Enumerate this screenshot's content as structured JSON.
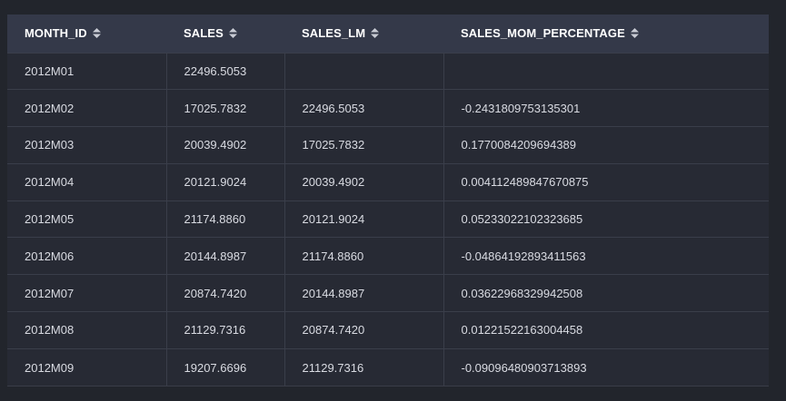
{
  "table": {
    "columns": [
      {
        "label": "MONTH_ID",
        "sort_icon": "sort-updown-icon"
      },
      {
        "label": "SALES",
        "sort_icon": "sort-updown-icon"
      },
      {
        "label": "SALES_LM",
        "sort_icon": "sort-updown-icon"
      },
      {
        "label": "SALES_MOM_PERCENTAGE",
        "sort_icon": "sort-updown-icon"
      }
    ],
    "rows": [
      [
        "2012M01",
        "22496.5053",
        "",
        ""
      ],
      [
        "2012M02",
        "17025.7832",
        "22496.5053",
        "-0.2431809753135301"
      ],
      [
        "2012M03",
        "20039.4902",
        "17025.7832",
        "0.1770084209694389"
      ],
      [
        "2012M04",
        "20121.9024",
        "20039.4902",
        "0.004112489847670875"
      ],
      [
        "2012M05",
        "21174.8860",
        "20121.9024",
        "0.05233022102323685"
      ],
      [
        "2012M06",
        "20144.8987",
        "21174.8860",
        "-0.04864192893411563"
      ],
      [
        "2012M07",
        "20874.7420",
        "20144.8987",
        "0.03622968329942508"
      ],
      [
        "2012M08",
        "21129.7316",
        "20874.7420",
        "0.01221522163004458"
      ],
      [
        "2012M09",
        "19207.6696",
        "21129.7316",
        "-0.09096480903713893"
      ]
    ]
  },
  "colors": {
    "background": "#22252c",
    "header_bg": "#343949",
    "row_bg": "#272a34",
    "text": "#d9dbe2",
    "header_text": "#ffffff"
  }
}
